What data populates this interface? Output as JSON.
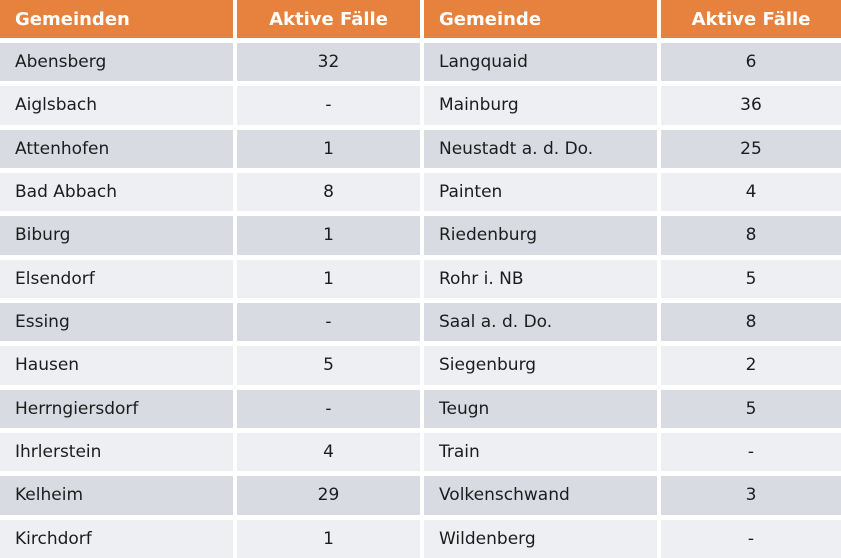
{
  "colors": {
    "header_bg": "#E6823D",
    "header_text": "#FFFFFF",
    "row_dark_bg": "#D9DBE3",
    "row_light_bg": "#EEEFF3",
    "cell_text": "#1C1C1C",
    "separator": "#FFFFFF"
  },
  "table": {
    "headers": [
      "Gemeinden",
      "Aktive Fälle",
      "Gemeinde",
      "Aktive Fälle"
    ],
    "rows": [
      [
        "Abensberg",
        "32",
        "Langquaid",
        "6"
      ],
      [
        "Aiglsbach",
        "-",
        "Mainburg",
        "36"
      ],
      [
        "Attenhofen",
        "1",
        "Neustadt a. d. Do.",
        "25"
      ],
      [
        "Bad Abbach",
        "8",
        "Painten",
        "4"
      ],
      [
        "Biburg",
        "1",
        "Riedenburg",
        "8"
      ],
      [
        "Elsendorf",
        "1",
        "Rohr i. NB",
        "5"
      ],
      [
        "Essing",
        "-",
        "Saal a. d. Do.",
        "8"
      ],
      [
        "Hausen",
        "5",
        "Siegenburg",
        "2"
      ],
      [
        "Herrngiersdorf",
        "-",
        "Teugn",
        "5"
      ],
      [
        "Ihrlerstein",
        "4",
        "Train",
        "-"
      ],
      [
        "Kelheim",
        "29",
        "Volkenschwand",
        "3"
      ],
      [
        "Kirchdorf",
        "1",
        "Wildenberg",
        "-"
      ]
    ]
  }
}
